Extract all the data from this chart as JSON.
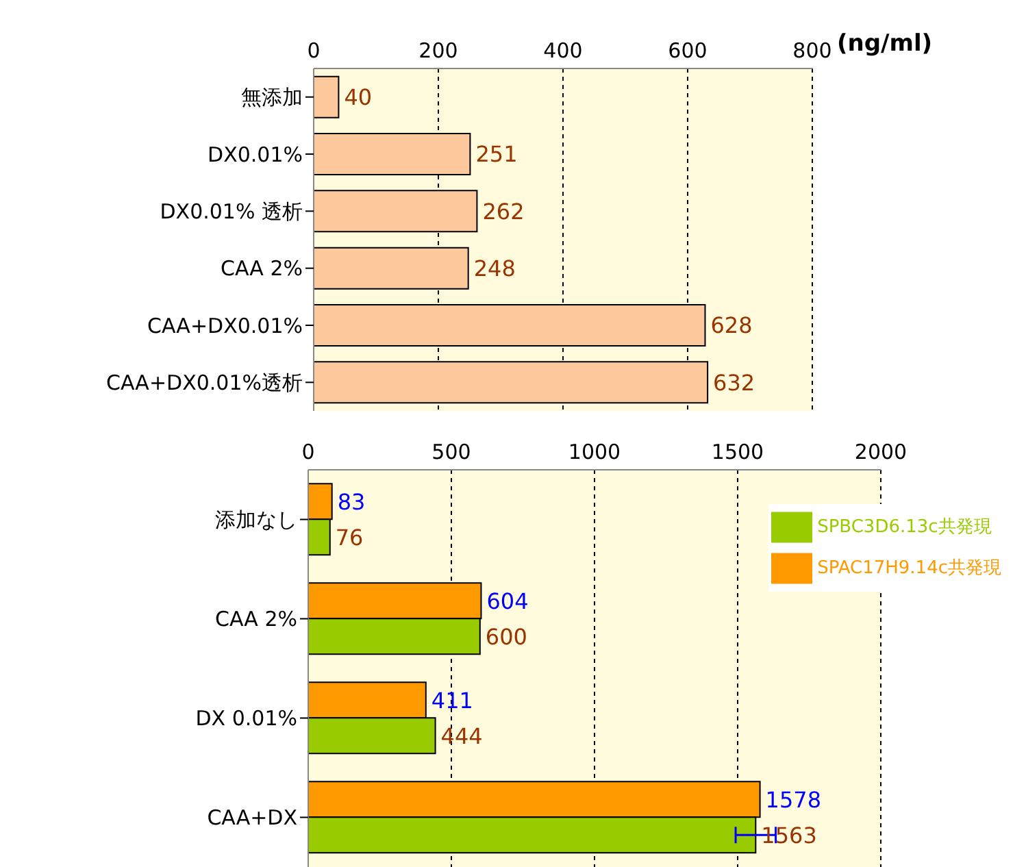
{
  "chart_data": [
    {
      "type": "bar",
      "orientation": "horizontal",
      "xlabel": "(ng/ml)",
      "categories": [
        "無添加",
        "DX0.01%",
        "DX0.01% 透析",
        "CAA 2%",
        "CAA+DX0.01%",
        "CAA+DX0.01%透析"
      ],
      "values": [
        40,
        251,
        262,
        248,
        628,
        632
      ],
      "color": "#fcc89c",
      "xlim": [
        0,
        800
      ],
      "xticks": [
        0,
        200,
        400,
        600,
        800
      ],
      "grid": "x",
      "data_labels": true,
      "legend": false
    },
    {
      "type": "bar",
      "orientation": "horizontal",
      "categories": [
        "添加なし",
        "CAA 2%",
        "DX 0.01%",
        "CAA+DX"
      ],
      "series": [
        {
          "name": "SPAC17H9.14c共発現",
          "color": "#ff9900",
          "values": [
            83,
            604,
            411,
            1578
          ]
        },
        {
          "name": "SPBC3D6.13c共発現",
          "color": "#99cc00",
          "values": [
            76,
            600,
            444,
            1563
          ],
          "errors": [
            null,
            null,
            null,
            70
          ]
        }
      ],
      "xlim": [
        0,
        2000
      ],
      "xticks": [
        0,
        500,
        1000,
        1500,
        2000
      ],
      "grid": "x",
      "data_labels": true,
      "legend": "top right"
    }
  ]
}
